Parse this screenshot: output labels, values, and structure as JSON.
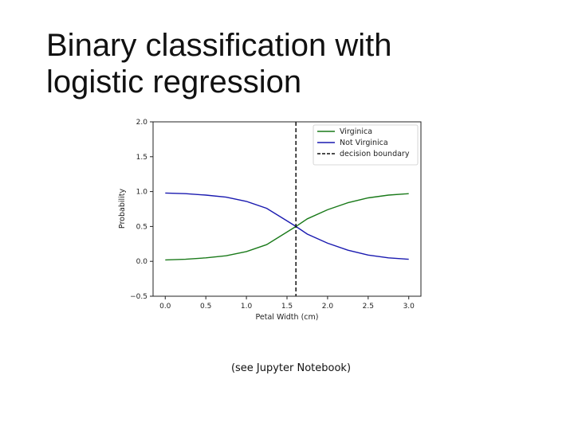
{
  "slide": {
    "title_lines": [
      "Binary classification with",
      "logistic regression"
    ],
    "caption": "(see Jupyter Notebook)"
  },
  "chart_data": {
    "type": "line",
    "xlabel": "Petal Width (cm)",
    "ylabel": "Probability",
    "xlim": [
      -0.15,
      3.15
    ],
    "ylim": [
      -0.5,
      2.0
    ],
    "x_ticks": [
      0.0,
      0.5,
      1.0,
      1.5,
      2.0,
      2.5,
      3.0
    ],
    "x_tick_labels": [
      "0.0",
      "0.5",
      "1.0",
      "1.5",
      "2.0",
      "2.5",
      "3.0"
    ],
    "y_ticks": [
      -0.5,
      0.0,
      0.5,
      1.0,
      1.5,
      2.0
    ],
    "y_tick_labels": [
      "−0.5",
      "0.0",
      "0.5",
      "1.0",
      "1.5",
      "2.0"
    ],
    "grid": false,
    "legend_position": "top-right",
    "decision_boundary_x": 1.61,
    "series": [
      {
        "name": "Virginica",
        "color": "#1a7a1a",
        "style": "solid",
        "x": [
          0.0,
          0.25,
          0.5,
          0.75,
          1.0,
          1.25,
          1.5,
          1.61,
          1.75,
          2.0,
          2.25,
          2.5,
          2.75,
          3.0
        ],
        "values": [
          0.02,
          0.03,
          0.05,
          0.08,
          0.14,
          0.24,
          0.42,
          0.5,
          0.61,
          0.74,
          0.84,
          0.91,
          0.95,
          0.97
        ]
      },
      {
        "name": "Not Virginica",
        "color": "#1a1ab0",
        "style": "solid",
        "x": [
          0.0,
          0.25,
          0.5,
          0.75,
          1.0,
          1.25,
          1.5,
          1.61,
          1.75,
          2.0,
          2.25,
          2.5,
          2.75,
          3.0
        ],
        "values": [
          0.98,
          0.97,
          0.95,
          0.92,
          0.86,
          0.76,
          0.58,
          0.5,
          0.39,
          0.26,
          0.16,
          0.09,
          0.05,
          0.03
        ]
      }
    ],
    "legend": [
      {
        "label": "Virginica",
        "color": "#1a7a1a",
        "style": "solid"
      },
      {
        "label": "Not Virginica",
        "color": "#1a1ab0",
        "style": "solid"
      },
      {
        "label": "decision boundary",
        "color": "#111111",
        "style": "dashed"
      }
    ]
  }
}
